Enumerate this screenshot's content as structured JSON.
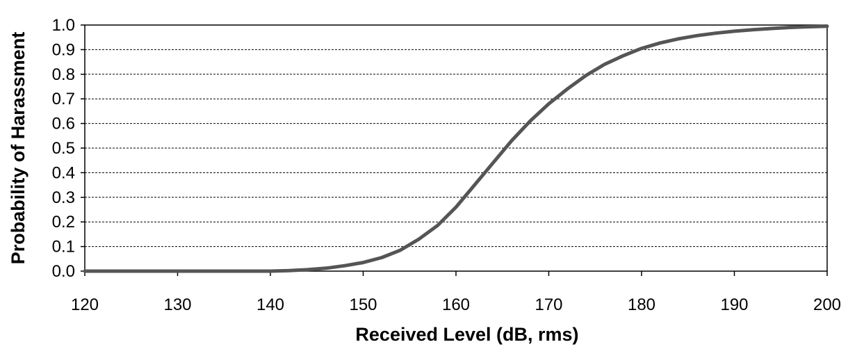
{
  "chart_data": {
    "type": "line",
    "title": "",
    "xlabel": "Received Level (dB, rms)",
    "ylabel": "Probability of Harassment",
    "xlim": [
      120,
      200
    ],
    "ylim": [
      0.0,
      1.0
    ],
    "xticks": [
      "120",
      "130",
      "140",
      "150",
      "160",
      "170",
      "180",
      "190",
      "200"
    ],
    "yticks": [
      "0.0",
      "0.1",
      "0.2",
      "0.3",
      "0.4",
      "0.5",
      "0.6",
      "0.7",
      "0.8",
      "0.9",
      "1.0"
    ],
    "grid": "horizontal dashed",
    "legend": "none",
    "line_color": "#555555",
    "series": [
      {
        "x": [
          120,
          125,
          130,
          135,
          140,
          142,
          144,
          146,
          148,
          150,
          152,
          154,
          156,
          158,
          160,
          162,
          164,
          166,
          168,
          170,
          172,
          174,
          176,
          178,
          180,
          182,
          184,
          186,
          188,
          190,
          192,
          194,
          196,
          198,
          200
        ],
        "values": [
          0.0,
          0.0,
          0.0,
          0.0,
          0.0,
          0.002,
          0.006,
          0.012,
          0.022,
          0.035,
          0.055,
          0.085,
          0.13,
          0.185,
          0.26,
          0.35,
          0.44,
          0.53,
          0.61,
          0.68,
          0.74,
          0.795,
          0.84,
          0.875,
          0.905,
          0.927,
          0.944,
          0.957,
          0.967,
          0.975,
          0.981,
          0.986,
          0.99,
          0.993,
          0.995
        ]
      }
    ]
  }
}
